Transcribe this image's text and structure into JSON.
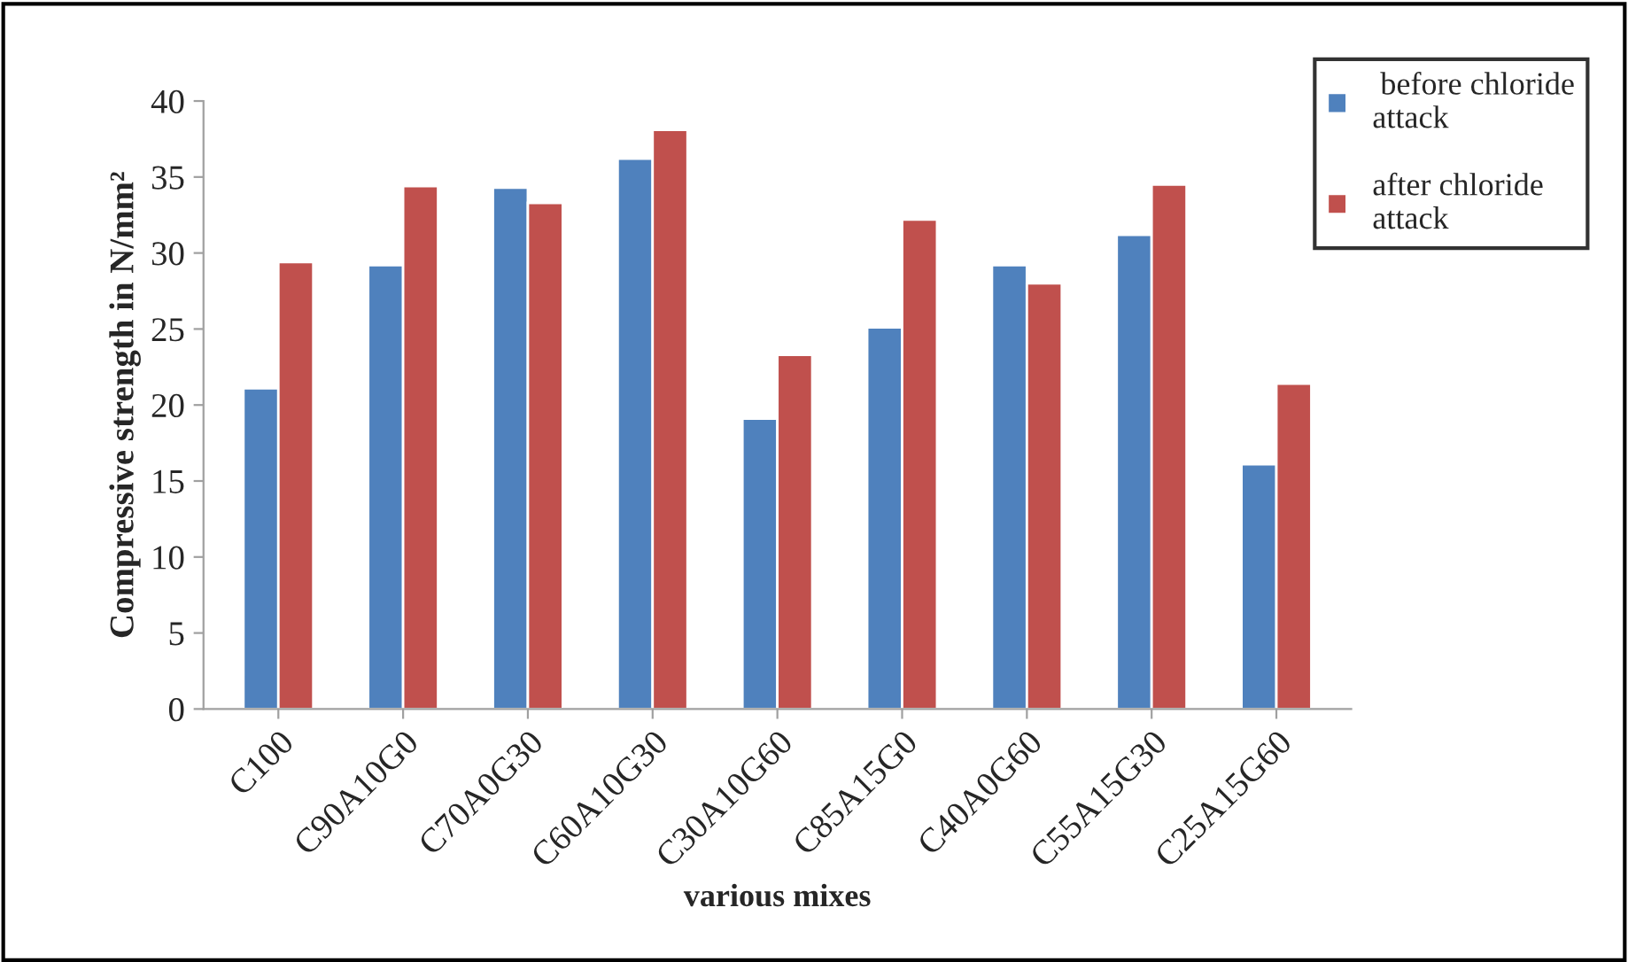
{
  "chart_data": {
    "type": "bar",
    "xlabel": "various mixes",
    "ylabel": "Compressive strength in N/mm²",
    "categories": [
      "C100",
      "C90A10G0",
      "C70A0G30",
      "C60A10G30",
      "C30A10G60",
      "C85A15G0",
      "C40A0G60",
      "C55A15G30",
      "C25A15G60"
    ],
    "series": [
      {
        "name": " before chloride attack",
        "color": "#4f81bd",
        "values": [
          21.1,
          29.2,
          34.3,
          36.2,
          19.1,
          25.1,
          29.2,
          31.2,
          16.1
        ]
      },
      {
        "name": "after chloride attack",
        "color": "#c0504d",
        "values": [
          29.4,
          34.4,
          33.3,
          38.1,
          23.3,
          32.2,
          28.0,
          34.5,
          21.4
        ]
      }
    ],
    "ylim": [
      0,
      40
    ],
    "yticks": [
      0,
      5,
      10,
      15,
      20,
      25,
      30,
      35,
      40
    ],
    "grid": false,
    "legend": "top right"
  }
}
